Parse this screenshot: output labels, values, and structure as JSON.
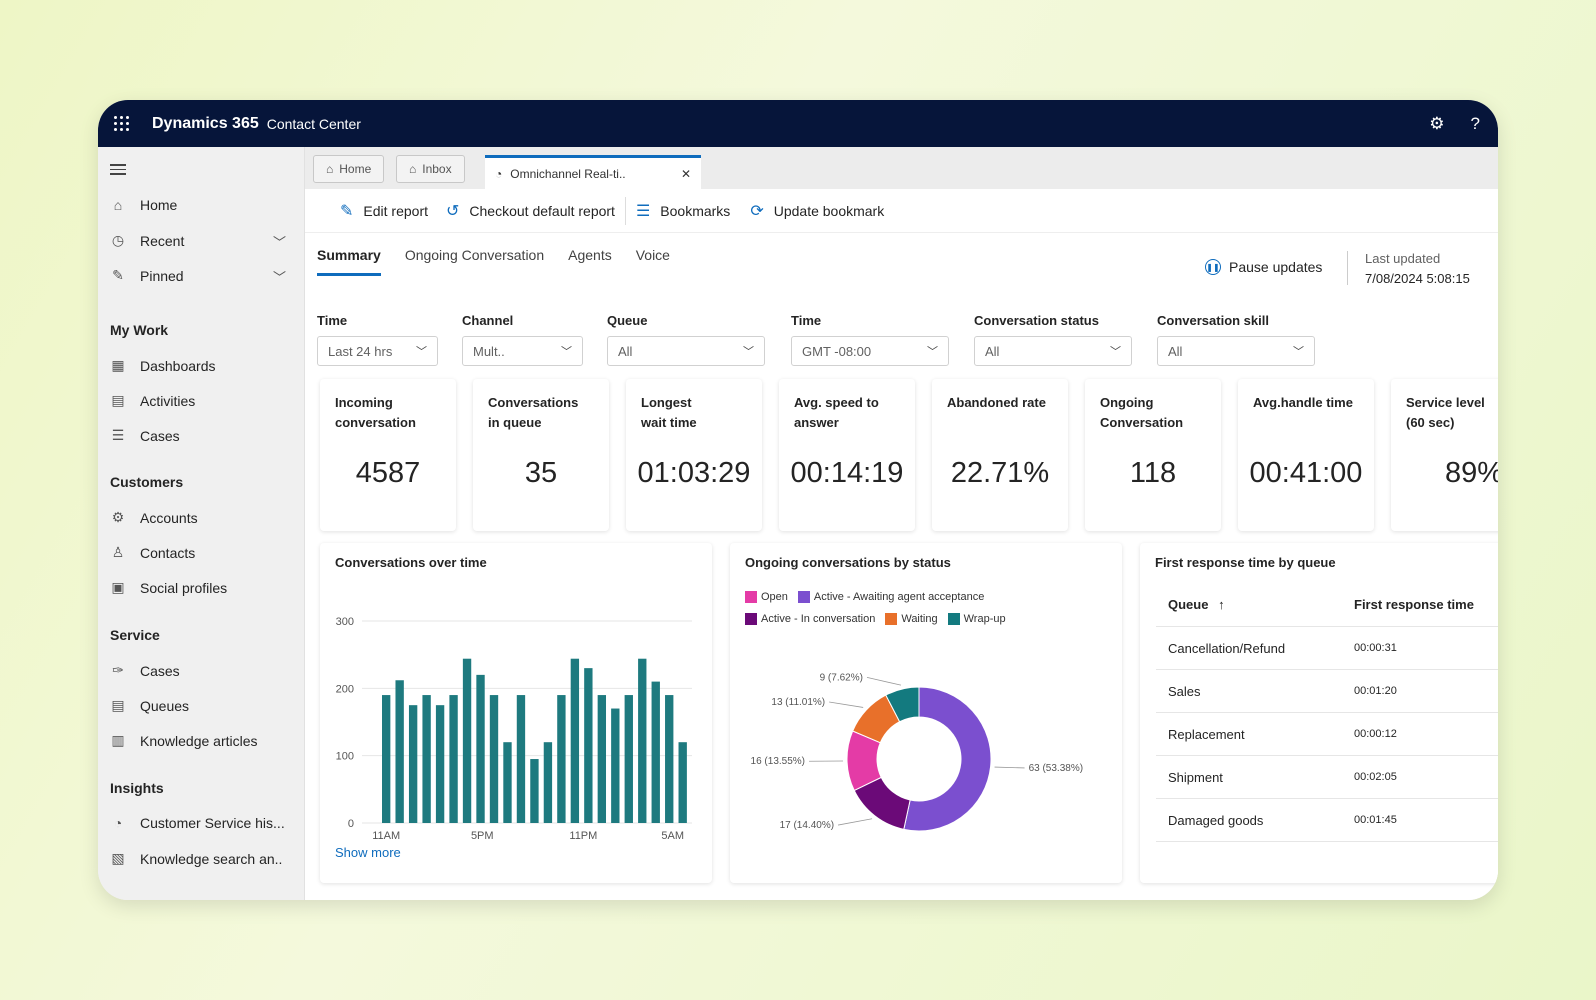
{
  "app": {
    "brand": "Dynamics 365",
    "product": "Contact Center"
  },
  "topbar": {
    "settings_icon": "gear-icon",
    "help_glyph": "?"
  },
  "sidebar": {
    "top_items": [
      {
        "label": "Home",
        "icon": "home-icon"
      },
      {
        "label": "Recent",
        "icon": "clock-icon"
      },
      {
        "label": "Pinned",
        "icon": "pin-icon"
      }
    ],
    "sections": [
      {
        "title": "My Work",
        "items": [
          {
            "label": "Dashboards"
          },
          {
            "label": "Activities"
          },
          {
            "label": "Cases"
          }
        ]
      },
      {
        "title": "Customers",
        "items": [
          {
            "label": "Accounts"
          },
          {
            "label": "Contacts"
          },
          {
            "label": "Social profiles"
          }
        ]
      },
      {
        "title": "Service",
        "items": [
          {
            "label": "Cases"
          },
          {
            "label": "Queues"
          },
          {
            "label": "Knowledge articles"
          }
        ]
      },
      {
        "title": "Insights",
        "items": [
          {
            "label": "Customer Service his..."
          },
          {
            "label": "Knowledge search an.."
          }
        ]
      }
    ]
  },
  "session_tabs": {
    "home": "Home",
    "inbox": "Inbox",
    "active": "Omnichannel Real-ti.."
  },
  "toolbar": {
    "edit_report": "Edit report",
    "checkout_default": "Checkout default report",
    "bookmarks": "Bookmarks",
    "update_bookmark": "Update bookmark"
  },
  "page_tabs": [
    "Summary",
    "Ongoing Conversation",
    "Agents",
    "Voice"
  ],
  "pause": {
    "label": "Pause updates"
  },
  "last_updated": {
    "label": "Last updated",
    "value": "7/08/2024 5:08:15"
  },
  "filters": [
    {
      "label": "Time",
      "value": "Last 24 hrs"
    },
    {
      "label": "Channel",
      "value": "Mult.."
    },
    {
      "label": "Queue",
      "value": "All"
    },
    {
      "label": "Time",
      "value": "GMT -08:00"
    },
    {
      "label": "Conversation status",
      "value": "All"
    },
    {
      "label": "Conversation skill",
      "value": "All"
    }
  ],
  "kpis": [
    {
      "label": "Incoming conversation",
      "value": "4587"
    },
    {
      "label": "Conversations in queue",
      "value": "35"
    },
    {
      "label": "Longest wait time",
      "value": "01:03:29"
    },
    {
      "label": "Avg. speed to answer",
      "value": "00:14:19"
    },
    {
      "label": "Abandoned rate",
      "value": "22.71%"
    },
    {
      "label": "Ongoing Conversation",
      "value": "118"
    },
    {
      "label": "Avg.handle time",
      "value": "00:41:00"
    },
    {
      "label": "Service level (60 sec)",
      "value": "89%"
    }
  ],
  "panels": {
    "over_time": {
      "title": "Conversations over time",
      "show_more": "Show more"
    },
    "by_status": {
      "title": "Ongoing conversations by status"
    },
    "first_response": {
      "title": "First response time by queue"
    }
  },
  "chart_data": [
    {
      "type": "bar",
      "title": "Conversations over time",
      "x_tick_labels": [
        "11AM",
        "5PM",
        "11PM",
        "5AM"
      ],
      "y_ticks": [
        0,
        100,
        200,
        300
      ],
      "ylim": [
        0,
        300
      ],
      "color": "#1e7a7f",
      "values": [
        190,
        212,
        175,
        190,
        175,
        190,
        244,
        220,
        190,
        120,
        190,
        95,
        120,
        190,
        244,
        230,
        190,
        170,
        190,
        244,
        210,
        190,
        120
      ],
      "grid": true
    },
    {
      "type": "pie",
      "variant": "donut",
      "title": "Ongoing conversations by status",
      "legend": [
        "Open",
        "Active - Awaiting agent acceptance",
        "Active - In conversation",
        "Waiting",
        "Wrap-up"
      ],
      "slices": [
        {
          "name": "Active - Awaiting agent acceptance",
          "value": 63,
          "label": "63 (53.38%)",
          "color": "#7b4fcf"
        },
        {
          "name": "Active - In conversation",
          "value": 17,
          "label": "17 (14.40%)",
          "color": "#6b0a78"
        },
        {
          "name": "Open",
          "value": 16,
          "label": "16 (13.55%)",
          "color": "#e43ba6"
        },
        {
          "name": "Waiting",
          "value": 13,
          "label": "13 (11.01%)",
          "color": "#e8702a"
        },
        {
          "name": "Wrap-up",
          "value": 9,
          "label": "9 (7.62%)",
          "color": "#137a7f"
        }
      ]
    }
  ],
  "first_response_table": {
    "columns": [
      "Queue",
      "First response time"
    ],
    "sort_glyph": "↑",
    "rows": [
      [
        "Cancellation/Refund",
        "00:00:31"
      ],
      [
        "Sales",
        "00:01:20"
      ],
      [
        "Replacement",
        "00:00:12"
      ],
      [
        "Shipment",
        "00:02:05"
      ],
      [
        "Damaged goods",
        "00:01:45"
      ]
    ]
  }
}
